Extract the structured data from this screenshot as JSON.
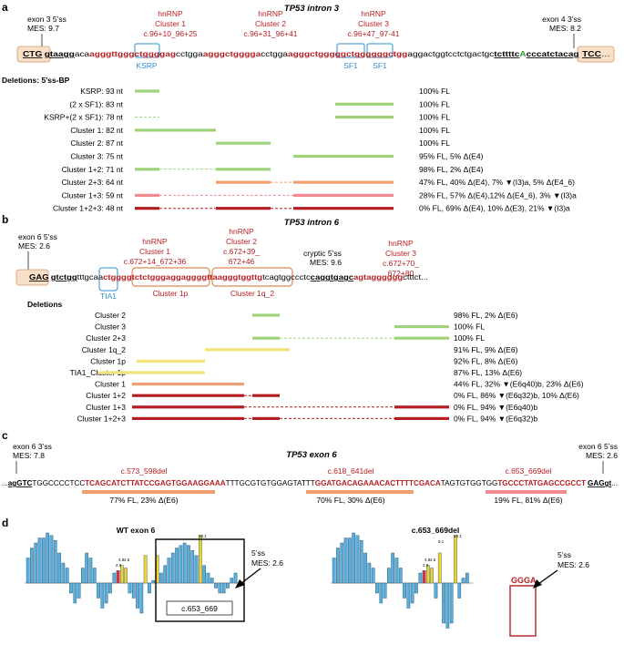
{
  "panel_a": {
    "letter": "a",
    "title": "TP53 intron 3",
    "exon3_ss": [
      "exon 3 5’ss",
      "MES: 9.7"
    ],
    "exon4_ss": [
      "exon 4 3’ss",
      "MES: 8.2"
    ],
    "clusters": [
      [
        "hnRNP",
        "Cluster 1",
        "c.96+10_96+25"
      ],
      [
        "hnRNP",
        "Cluster 2",
        "c.96+31_96+41"
      ],
      [
        "hnRNP",
        "Cluster 3",
        "c.96+47_97-41"
      ]
    ],
    "motifs": [
      "KSRP",
      "SF1",
      "SF1"
    ],
    "seq": [
      "CTG",
      "gtaagg",
      "aca",
      "agggttgggctggggag",
      "cctgga",
      "agggctgggga",
      "cctgga",
      "agggctgggggctgggg",
      "ggctgg",
      "aggact",
      "ggtcctctgactgc",
      "tcttttc",
      "A",
      "cccatctacag",
      "TCC"
    ],
    "del_header": "Deletions: 5’ss-BP",
    "rows": [
      {
        "name": "KSRP: 93 nt",
        "result": "100% FL",
        "color": "green"
      },
      {
        "name": "(2 x SF1): 83 nt",
        "result": "100% FL",
        "color": "green"
      },
      {
        "name": "KSRP+(2 x SF1): 78 nt",
        "result": "100% FL",
        "color": "green"
      },
      {
        "name": "Cluster 1: 82 nt",
        "result": "100% FL",
        "color": "green"
      },
      {
        "name": "Cluster 2: 87 nt",
        "result": "100% FL",
        "color": "green"
      },
      {
        "name": "Cluster 3: 75 nt",
        "result": "95% FL, 5% Δ(E4)",
        "color": "green"
      },
      {
        "name": "Cluster 1+2: 71 nt",
        "result": "98% FL, 2% Δ(E4)",
        "color": "green"
      },
      {
        "name": "Cluster 2+3: 64 nt",
        "result": "47% FL, 40% Δ(E4), 7% ▼(I3)a, 5% Δ(E4_6)",
        "color": "orange"
      },
      {
        "name": "Cluster 1+3: 59 nt",
        "result": "28% FL, 57% Δ(E4),12% Δ(E4_6), 3% ▼(I3)a",
        "color": "pink"
      },
      {
        "name": "Cluster 1+2+3: 48 nt",
        "result": "0% FL, 69% Δ(E4), 10% Δ(E3), 21% ▼(I3)a",
        "color": "red"
      }
    ]
  },
  "panel_b": {
    "letter": "b",
    "title": "TP53 intron 6",
    "exon6_ss": [
      "exon 6 5’ss",
      "MES: 2.6"
    ],
    "cryptic_ss": [
      "cryptic 5’ss",
      "MES: 9.6"
    ],
    "clusters": [
      [
        "hnRNP",
        "Cluster 1",
        "c.672+14_672+36"
      ],
      [
        "hnRNP",
        "Cluster 2",
        "c.672+39_",
        "672+46"
      ],
      [
        "hnRNP",
        "Cluster 3",
        "c.672+70_",
        "672+80"
      ]
    ],
    "motif": "TIA1",
    "sub_labels": [
      "Cluster 1p",
      "Cluster 1q_2"
    ],
    "seq": [
      "GAG",
      "gtctgg",
      "tttgcaa",
      "ctggggtctctggga",
      "ggagggg",
      "ttaagggtggttg",
      "tcagtggccctc",
      "caggtgagc",
      "agtagggggg",
      "ctttct..."
    ],
    "del_header": "Deletions",
    "rows": [
      {
        "name": "Cluster 2",
        "result": "98% FL, 2% Δ(E6)",
        "color": "green"
      },
      {
        "name": "Cluster 3",
        "result": "100% FL",
        "color": "green"
      },
      {
        "name": "Cluster 2+3",
        "result": "100% FL",
        "color": "green"
      },
      {
        "name": "Cluster 1q_2",
        "result": "91% FL, 9% Δ(E6)",
        "color": "yellow"
      },
      {
        "name": "Cluster 1p",
        "result": "92% FL, 8% Δ(E6)",
        "color": "yellow"
      },
      {
        "name": "TIA1_Cluster 1p",
        "result": "87% FL, 13% Δ(E6)",
        "color": "yellow"
      },
      {
        "name": "Cluster 1",
        "result": "44% FL, 32% ▼(E6q40)b, 23% Δ(E6)",
        "color": "orange"
      },
      {
        "name": "Cluster 1+2",
        "result": "0% FL, 86% ▼(E6q32)b, 10% Δ(E6)",
        "color": "red"
      },
      {
        "name": "Cluster 1+3",
        "result": "0% FL, 94% ▼(E6q40)b",
        "color": "red"
      },
      {
        "name": "Cluster 1+2+3",
        "result": "0% FL, 94% ▼(E6q32)b",
        "color": "red"
      }
    ]
  },
  "panel_c": {
    "letter": "c",
    "title": "TP53 exon 6",
    "exon6_3ss": [
      "exon 6 3’ss",
      "MES: 7.8"
    ],
    "exon6_5ss": [
      "exon 6 5’ss",
      "MES: 2.6"
    ],
    "dels": [
      "c.573_598del",
      "c.618_641del",
      "c.653_669del"
    ],
    "results": [
      "77% FL, 23% Δ(E6)",
      "70% FL, 30% Δ(E6)",
      "19% FL, 81% Δ(E6)"
    ],
    "seq": [
      "...",
      "agGTC",
      "TGGCCCCTCC",
      "TCAGCATCTTATCCGAGTGGAAGGAAA",
      "TTTGCGTGTGGAGTATTT",
      "GGATGACAGAAACACTTTTCGACA",
      "TAGTGTGGTGG",
      "TGCCCTATGAGCCGCCT",
      "GAGgt",
      "..."
    ]
  },
  "panel_d": {
    "letter": "d",
    "wt_title": "WT exon 6",
    "del_title": "c.653_669del",
    "box_label": "c.653_669",
    "ss_label": [
      "5’ss",
      "MES: 2.6"
    ],
    "gg_label": "GGGA",
    "value_labels": [
      "2.9",
      "4.8",
      "4.5",
      "10.1",
      "9.1"
    ]
  },
  "colors": {
    "red": "#b41e22",
    "green": "#9fd37a",
    "orange": "#f0a070",
    "pink": "#f28a90",
    "yellow": "#f1e27a",
    "blue": "#2f8fd0",
    "bar": "#5aaedc"
  }
}
